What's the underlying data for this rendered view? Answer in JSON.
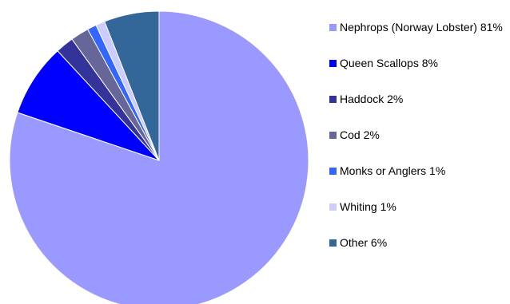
{
  "chart_data": {
    "type": "pie",
    "title": "",
    "slices": [
      {
        "label": "Nephrops (Norway Lobster) 81%",
        "value": 81,
        "color": "#9999FF"
      },
      {
        "label": "Queen Scallops 8%",
        "value": 8,
        "color": "#0000FF"
      },
      {
        "label": "Haddock 2%",
        "value": 2,
        "color": "#333399"
      },
      {
        "label": "Cod 2%",
        "value": 2,
        "color": "#666699"
      },
      {
        "label": "Monks or Anglers 1%",
        "value": 1,
        "color": "#3366FF"
      },
      {
        "label": "Whiting 1%",
        "value": 1,
        "color": "#CCCCFF"
      },
      {
        "label": "Other 6%",
        "value": 6,
        "color": "#336699"
      }
    ],
    "legend_position": "right"
  }
}
